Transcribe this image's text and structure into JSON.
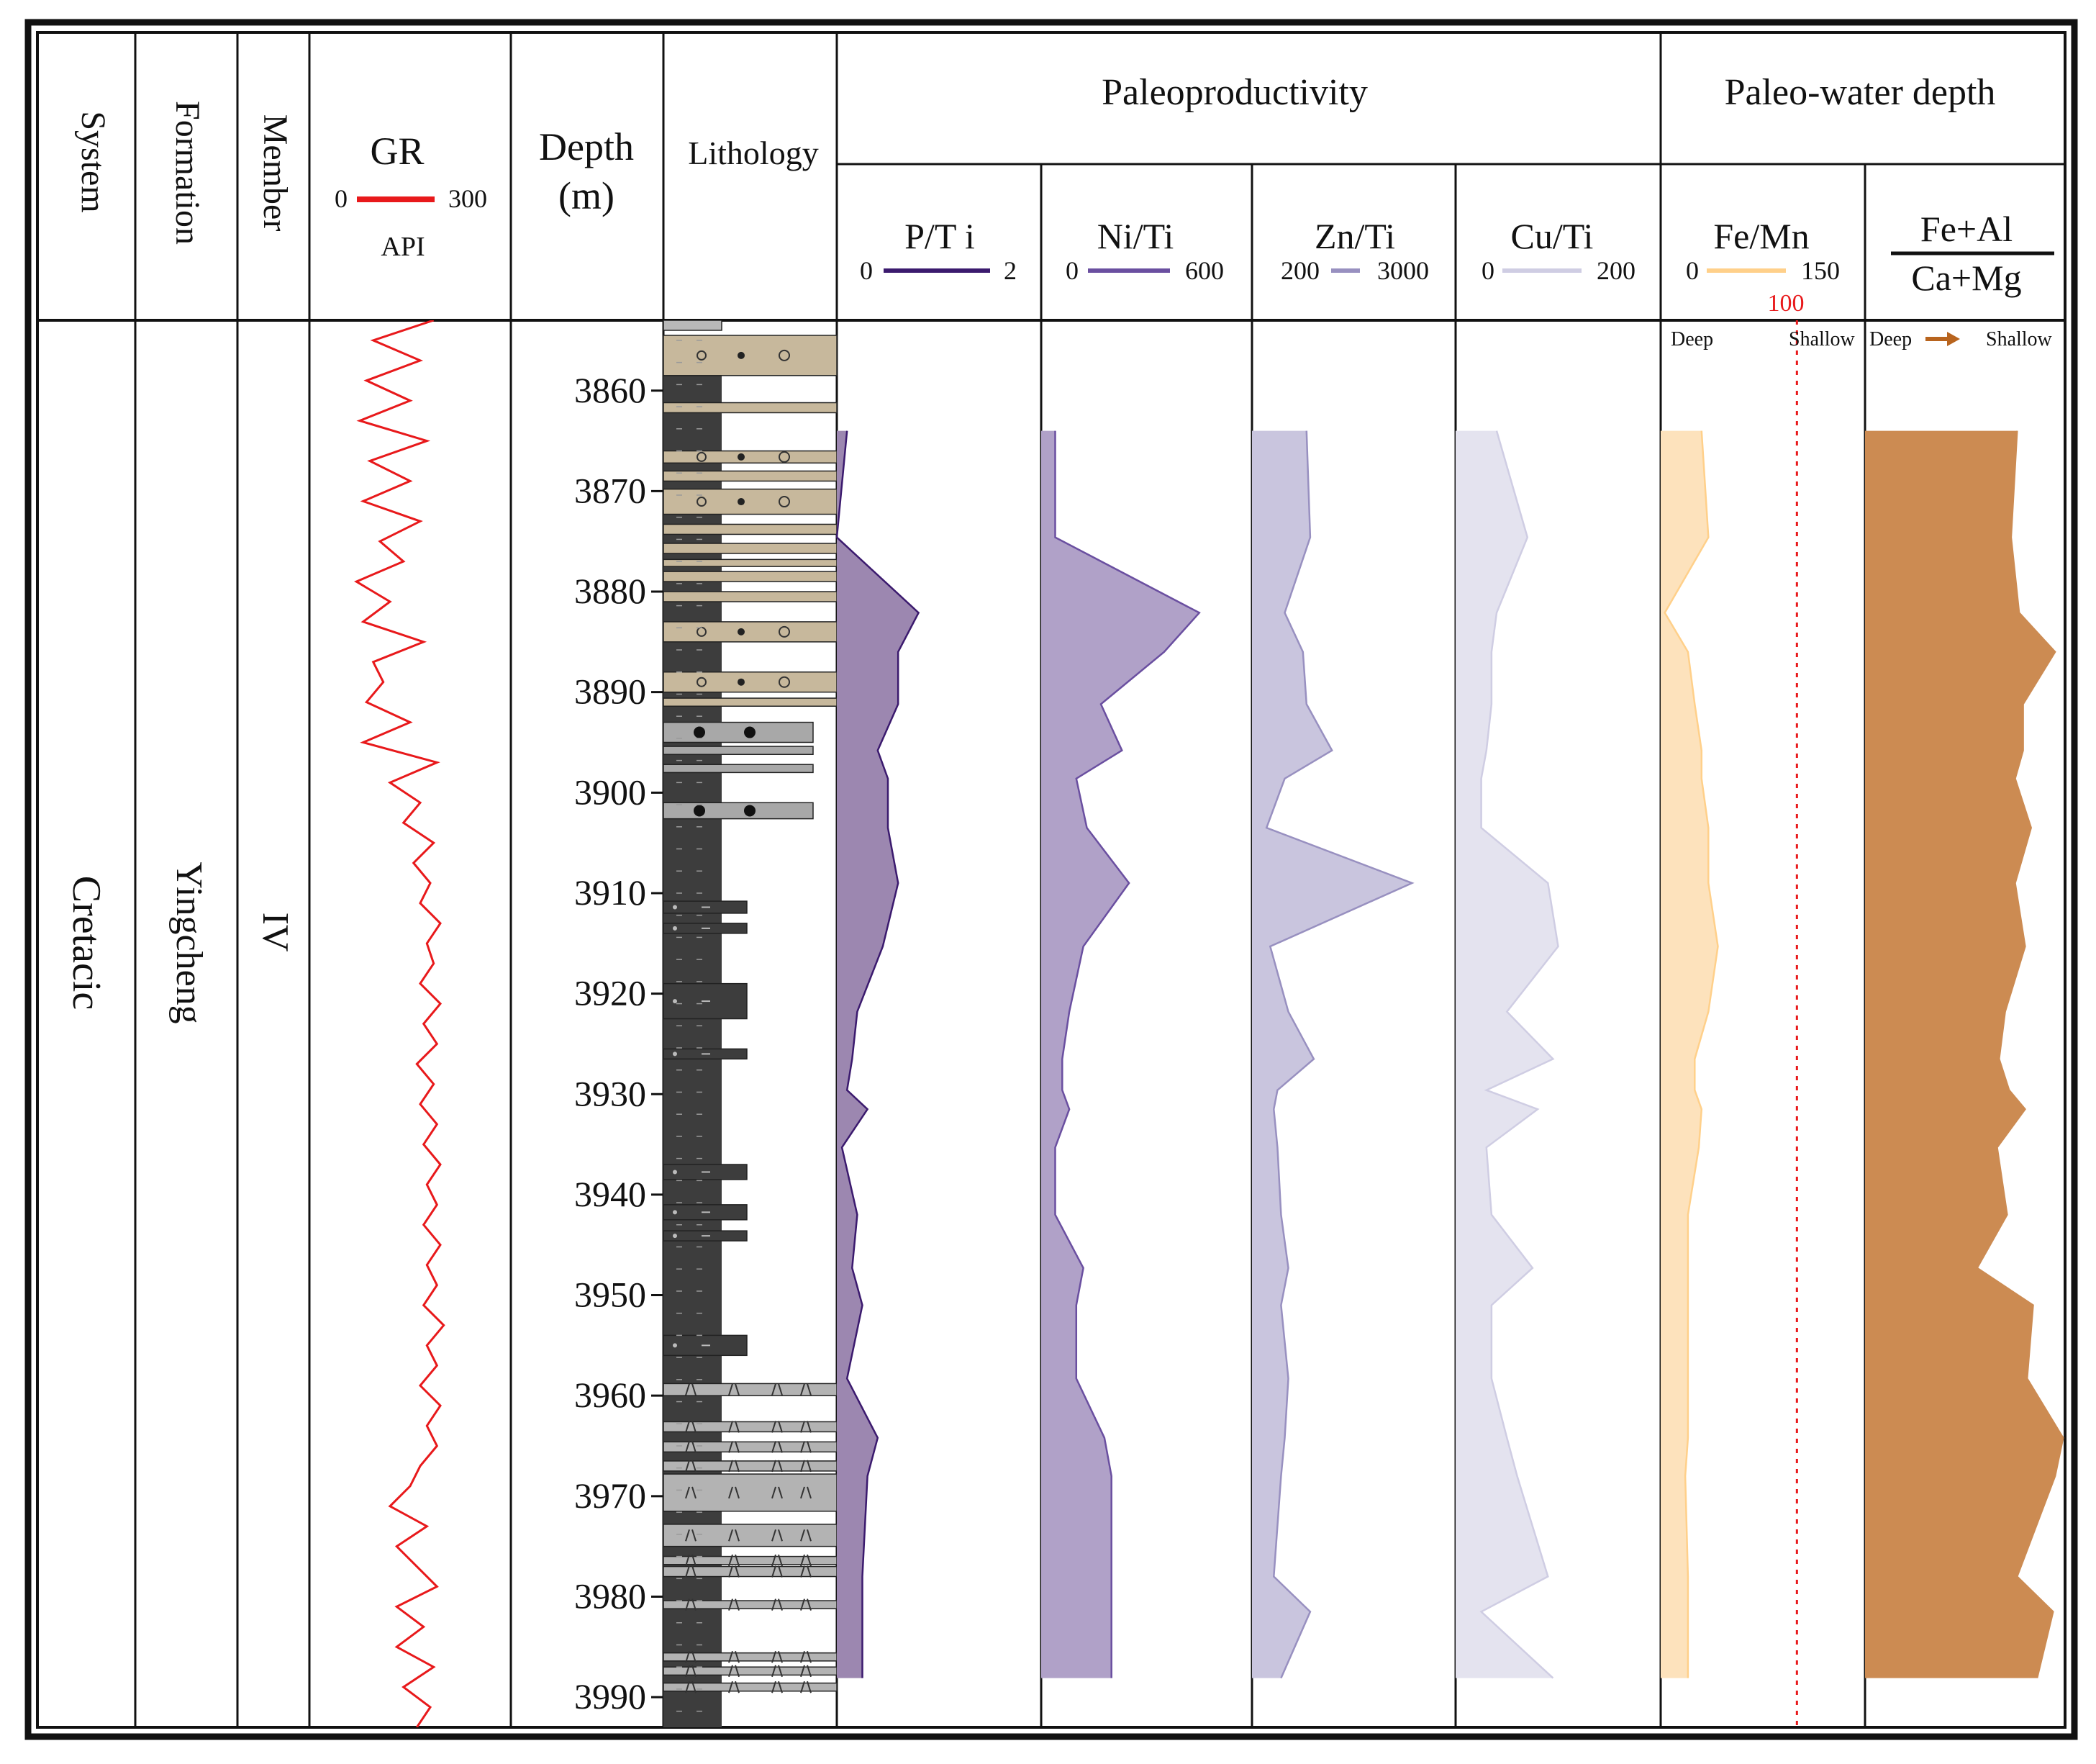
{
  "header": {
    "system": "System",
    "formation": "Formation",
    "member": "Member",
    "gr_title": "GR",
    "gr_min": "0",
    "gr_max": "300",
    "gr_unit": "API",
    "depth_title": "Depth",
    "depth_unit": "(m)",
    "lithology": "Lithology",
    "paleoproductivity": "Paleoproductivity",
    "paleo_water_depth": "Paleo-water depth"
  },
  "labels": {
    "system": "Cretacic",
    "formation": "Yingcheng",
    "member": "IV"
  },
  "colors": {
    "frame": "#111111",
    "gr": "#e8191b",
    "mudstone": "#3d3d3d",
    "sandstone": "#c7b89c",
    "conglomerate": "#a8a8a8",
    "tuff": "#b3b3b3",
    "threshold": "#e8191b"
  },
  "tracks": [
    {
      "key": "pti",
      "title": "P/T i",
      "min_label": "0",
      "max_label": "2",
      "min": 0,
      "max": 2,
      "line_color": "#3b1a6e",
      "fill_color": "#9c87b0"
    },
    {
      "key": "niti",
      "title": "Ni/Ti",
      "min_label": "0",
      "max_label": "600",
      "min": 0,
      "max": 600,
      "line_color": "#6a4fa0",
      "fill_color": "#b0a1c8"
    },
    {
      "key": "znti",
      "title": "Zn/Ti",
      "min_label": "200",
      "max_label": "3000",
      "min": 200,
      "max": 3000,
      "line_color": "#9890c0",
      "fill_color": "#c9c5de"
    },
    {
      "key": "cuti",
      "title": "Cu/Ti",
      "min_label": "0",
      "max_label": "200",
      "min": 0,
      "max": 200,
      "line_color": "#cfcde3",
      "fill_color": "#e4e3ef"
    },
    {
      "key": "femn",
      "title": "Fe/Mn",
      "min_label": "0",
      "max_label": "150",
      "min": 0,
      "max": 150,
      "line_color": "#ffd08a",
      "fill_color": "#fde2bc",
      "threshold": 100,
      "threshold_label": "100",
      "deep_label": "Deep",
      "shallow_label": "Shallow"
    },
    {
      "key": "ratio",
      "title_top": "Fe+Al",
      "title_bottom": "Ca+Mg",
      "min": 0,
      "max": 1,
      "line_color": "#cc8b52",
      "fill_color": "#cc8b52",
      "deep_label": "Deep",
      "shallow_label": "Shallow"
    }
  ],
  "chart_data": {
    "type": "area",
    "depth_axis": {
      "label": "Depth (m)",
      "range": [
        3853,
        3993
      ],
      "ticks": [
        3860,
        3870,
        3880,
        3890,
        3900,
        3910,
        3920,
        3930,
        3940,
        3950,
        3960,
        3970,
        3980,
        3990
      ],
      "tick_labels": [
        "3860",
        "3870",
        "3880",
        "3890",
        "3900",
        "3910",
        "3920",
        "3930",
        "3940",
        "3950",
        "3960",
        "3970",
        "3980",
        "3990"
      ]
    },
    "sample_depths": [
      3864.0,
      3874.6,
      3882.1,
      3886.0,
      3891.2,
      3895.8,
      3898.6,
      3903.5,
      3909.0,
      3915.3,
      3921.8,
      3926.5,
      3929.6,
      3931.5,
      3935.3,
      3942.0,
      3947.3,
      3951.0,
      3958.3,
      3964.2,
      3968.0,
      3978.0,
      3981.5,
      3988.1
    ],
    "series": [
      {
        "name": "P/Ti",
        "values": [
          0.1,
          0.0,
          0.8,
          0.6,
          0.6,
          0.4,
          0.5,
          0.5,
          0.6,
          0.45,
          0.2,
          0.15,
          0.1,
          0.3,
          0.05,
          0.2,
          0.15,
          0.25,
          0.1,
          0.4,
          0.3,
          0.25,
          0.25,
          0.25
        ]
      },
      {
        "name": "Ni/Ti",
        "values": [
          40,
          40,
          450,
          350,
          170,
          230,
          100,
          130,
          250,
          120,
          80,
          60,
          60,
          80,
          40,
          40,
          120,
          100,
          100,
          180,
          200,
          200,
          200,
          200
        ]
      },
      {
        "name": "Zn/Ti",
        "values": [
          950,
          1000,
          650,
          900,
          950,
          1300,
          650,
          400,
          2400,
          450,
          700,
          1050,
          550,
          500,
          550,
          600,
          700,
          600,
          700,
          650,
          600,
          500,
          1000,
          600
        ]
      },
      {
        "name": "Cu/Ti",
        "values": [
          40,
          70,
          40,
          35,
          35,
          30,
          25,
          25,
          90,
          100,
          50,
          95,
          30,
          80,
          30,
          35,
          75,
          35,
          35,
          50,
          60,
          90,
          25,
          95
        ]
      },
      {
        "name": "Fe/Mn",
        "values": [
          30,
          35,
          3,
          20,
          25,
          30,
          30,
          35,
          35,
          42,
          35,
          25,
          25,
          30,
          28,
          20,
          20,
          20,
          20,
          20,
          18,
          20,
          20,
          20
        ]
      },
      {
        "name": "(Fe+Al)/(Ca+Mg)",
        "values": [
          0.76,
          0.73,
          0.77,
          0.95,
          0.79,
          0.79,
          0.75,
          0.83,
          0.75,
          0.8,
          0.7,
          0.67,
          0.72,
          0.8,
          0.66,
          0.71,
          0.56,
          0.84,
          0.81,
          0.99,
          0.95,
          0.76,
          0.94,
          0.86
        ]
      }
    ],
    "gr": {
      "name": "GR",
      "unit": "API",
      "range": [
        0,
        300
      ],
      "depths": [
        3853,
        3855,
        3857,
        3859,
        3861,
        3863,
        3865,
        3867,
        3869,
        3871,
        3873,
        3875,
        3877,
        3879,
        3881,
        3883,
        3885,
        3887,
        3889,
        3891,
        3893,
        3895,
        3897,
        3899,
        3901,
        3903,
        3905,
        3907,
        3909,
        3911,
        3913,
        3915,
        3917,
        3919,
        3921,
        3923,
        3925,
        3927,
        3929,
        3931,
        3933,
        3935,
        3937,
        3939,
        3941,
        3943,
        3945,
        3947,
        3949,
        3951,
        3953,
        3955,
        3957,
        3959,
        3961,
        3963,
        3965,
        3967,
        3969,
        3971,
        3973,
        3975,
        3977,
        3979,
        3981,
        3983,
        3985,
        3987,
        3989,
        3991,
        3993
      ],
      "values": [
        185,
        95,
        165,
        85,
        150,
        75,
        175,
        90,
        150,
        80,
        165,
        105,
        140,
        70,
        120,
        80,
        170,
        95,
        110,
        85,
        150,
        80,
        190,
        120,
        165,
        140,
        185,
        155,
        180,
        165,
        195,
        175,
        185,
        165,
        195,
        170,
        190,
        160,
        185,
        165,
        190,
        170,
        195,
        175,
        190,
        170,
        195,
        175,
        190,
        170,
        200,
        175,
        190,
        165,
        195,
        175,
        190,
        165,
        150,
        120,
        175,
        130,
        160,
        190,
        130,
        170,
        130,
        185,
        140,
        180,
        160
      ]
    },
    "lithology_layers": [
      {
        "top": 3853.0,
        "bottom": 3854.0,
        "type": "mud"
      },
      {
        "top": 3854.5,
        "bottom": 3858.5,
        "type": "sand"
      },
      {
        "top": 3861.2,
        "bottom": 3862.2,
        "type": "sand"
      },
      {
        "top": 3866.0,
        "bottom": 3867.2,
        "type": "sand"
      },
      {
        "top": 3868.0,
        "bottom": 3869.0,
        "type": "sand"
      },
      {
        "top": 3869.8,
        "bottom": 3872.3,
        "type": "sand"
      },
      {
        "top": 3873.3,
        "bottom": 3874.3,
        "type": "sand"
      },
      {
        "top": 3875.2,
        "bottom": 3876.2,
        "type": "sand"
      },
      {
        "top": 3876.8,
        "bottom": 3877.5,
        "type": "sand"
      },
      {
        "top": 3878.0,
        "bottom": 3879.0,
        "type": "sand"
      },
      {
        "top": 3880.0,
        "bottom": 3881.0,
        "type": "sand"
      },
      {
        "top": 3883.0,
        "bottom": 3885.0,
        "type": "sand"
      },
      {
        "top": 3888.0,
        "bottom": 3890.0,
        "type": "sand"
      },
      {
        "top": 3890.6,
        "bottom": 3891.4,
        "type": "sand"
      },
      {
        "top": 3893.0,
        "bottom": 3895.0,
        "type": "cong"
      },
      {
        "top": 3895.4,
        "bottom": 3896.2,
        "type": "cong"
      },
      {
        "top": 3897.2,
        "bottom": 3898.0,
        "type": "cong"
      },
      {
        "top": 3901.0,
        "bottom": 3902.6,
        "type": "cong"
      },
      {
        "top": 3910.8,
        "bottom": 3912.0,
        "type": "silt"
      },
      {
        "top": 3913.0,
        "bottom": 3914.0,
        "type": "silt"
      },
      {
        "top": 3919.0,
        "bottom": 3922.5,
        "type": "silt"
      },
      {
        "top": 3925.5,
        "bottom": 3926.5,
        "type": "silt"
      },
      {
        "top": 3937.0,
        "bottom": 3938.5,
        "type": "silt"
      },
      {
        "top": 3941.0,
        "bottom": 3942.5,
        "type": "silt"
      },
      {
        "top": 3943.6,
        "bottom": 3944.6,
        "type": "silt"
      },
      {
        "top": 3954.0,
        "bottom": 3956.0,
        "type": "silt"
      },
      {
        "top": 3958.8,
        "bottom": 3960.0,
        "type": "tuff"
      },
      {
        "top": 3962.6,
        "bottom": 3963.6,
        "type": "tuff"
      },
      {
        "top": 3964.6,
        "bottom": 3965.6,
        "type": "tuff"
      },
      {
        "top": 3966.5,
        "bottom": 3967.5,
        "type": "tuff"
      },
      {
        "top": 3967.8,
        "bottom": 3971.5,
        "type": "tuff"
      },
      {
        "top": 3972.8,
        "bottom": 3975.0,
        "type": "tuff"
      },
      {
        "top": 3976.0,
        "bottom": 3976.8,
        "type": "tuff"
      },
      {
        "top": 3977.0,
        "bottom": 3978.0,
        "type": "tuff"
      },
      {
        "top": 3980.4,
        "bottom": 3981.2,
        "type": "tuff"
      },
      {
        "top": 3985.6,
        "bottom": 3986.4,
        "type": "tuff"
      },
      {
        "top": 3987.0,
        "bottom": 3987.8,
        "type": "tuff"
      },
      {
        "top": 3988.6,
        "bottom": 3989.4,
        "type": "tuff"
      }
    ]
  }
}
